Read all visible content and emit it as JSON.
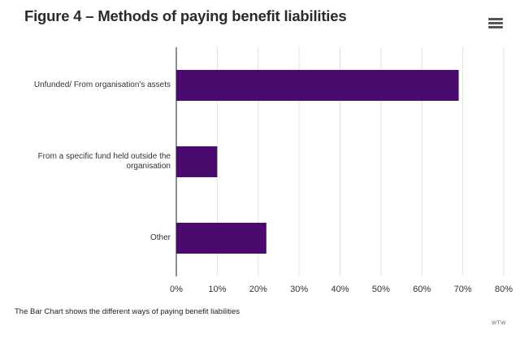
{
  "header": {
    "title": "Figure 4 – Methods of paying benefit liabilities",
    "menu_icon": "hamburger-menu-icon"
  },
  "chart_data": {
    "type": "bar",
    "orientation": "horizontal",
    "title": "Figure 4 – Methods of paying benefit liabilities",
    "categories": [
      "Unfunded/ From organisation's assets",
      "From a specific fund held outside the organisation",
      "Other"
    ],
    "category_lines": [
      [
        "Unfunded/ From organisation's assets"
      ],
      [
        "From a specific fund held outside the",
        "organisation"
      ],
      [
        "Other"
      ]
    ],
    "values": [
      69,
      10,
      22
    ],
    "unit": "%",
    "xlim": [
      0,
      80
    ],
    "xticks": [
      0,
      10,
      20,
      30,
      40,
      50,
      60,
      70,
      80
    ],
    "xtick_labels": [
      "0%",
      "10%",
      "20%",
      "30%",
      "40%",
      "50%",
      "60%",
      "70%",
      "80%"
    ],
    "xlabel": "",
    "ylabel": "",
    "grid": true,
    "bar_color": "#4b0a6e",
    "grid_color": "#e2e2e2",
    "axis_color": "#222222"
  },
  "footer": {
    "caption": "The Bar Chart shows the different ways of paying benefit liabilities",
    "credit": "WTW"
  }
}
